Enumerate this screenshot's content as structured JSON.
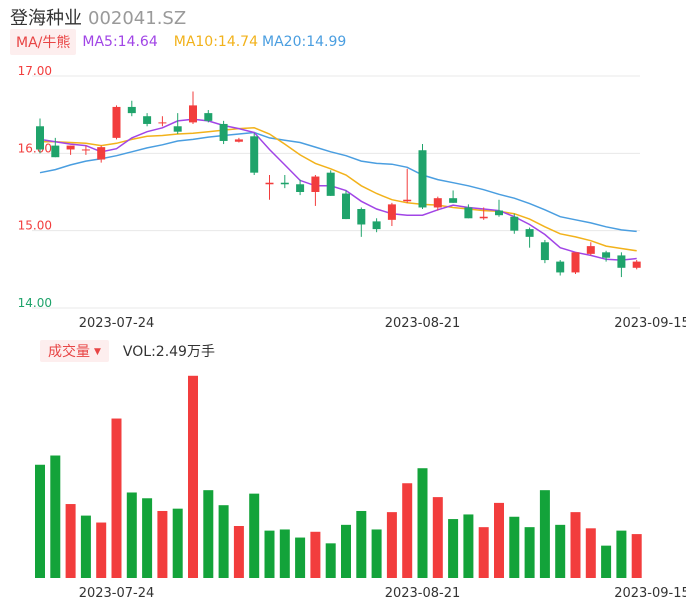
{
  "header": {
    "stock_name": "登海种业",
    "stock_code": "002041.SZ",
    "ma_tag": "MA/牛熊",
    "ma5_label": "MA5:14.64",
    "ma10_label": "MA10:14.74",
    "ma20_label": "MA20:14.99",
    "volume_tag": "成交量",
    "volume_label": "VOL:2.49万手"
  },
  "colors": {
    "up": "#f23d3d",
    "down": "#1fa36b",
    "vol_down": "#13a33a",
    "ma5": "#a145e6",
    "ma10": "#f2b21b",
    "ma20": "#4a9ee0",
    "grid": "#e8e8e8"
  },
  "chart_data": [
    {
      "type": "candlestick",
      "y_ticks": [
        "17.00",
        "16.00",
        "15.00",
        "14.00"
      ],
      "ylim": [
        14.0,
        17.0
      ],
      "x_tick_labels": [
        {
          "index": 5,
          "label": "2023-07-24"
        },
        {
          "index": 25,
          "label": "2023-08-21"
        },
        {
          "index": 40,
          "label": "2023-09-15"
        }
      ],
      "candles": [
        {
          "o": 16.35,
          "h": 16.45,
          "l": 16.0,
          "c": 16.05
        },
        {
          "o": 16.1,
          "h": 16.2,
          "l": 15.95,
          "c": 15.95
        },
        {
          "o": 16.05,
          "h": 16.1,
          "l": 15.98,
          "c": 16.1
        },
        {
          "o": 16.05,
          "h": 16.1,
          "l": 15.98,
          "c": 16.05
        },
        {
          "o": 15.92,
          "h": 16.1,
          "l": 15.88,
          "c": 16.08
        },
        {
          "o": 16.2,
          "h": 16.62,
          "l": 16.18,
          "c": 16.6
        },
        {
          "o": 16.6,
          "h": 16.68,
          "l": 16.48,
          "c": 16.52
        },
        {
          "o": 16.48,
          "h": 16.52,
          "l": 16.35,
          "c": 16.38
        },
        {
          "o": 16.4,
          "h": 16.48,
          "l": 16.35,
          "c": 16.4
        },
        {
          "o": 16.35,
          "h": 16.52,
          "l": 16.25,
          "c": 16.28
        },
        {
          "o": 16.4,
          "h": 16.8,
          "l": 16.38,
          "c": 16.62
        },
        {
          "o": 16.52,
          "h": 16.56,
          "l": 16.4,
          "c": 16.42
        },
        {
          "o": 16.38,
          "h": 16.42,
          "l": 16.12,
          "c": 16.16
        },
        {
          "o": 16.15,
          "h": 16.2,
          "l": 16.14,
          "c": 16.18
        },
        {
          "o": 16.22,
          "h": 16.26,
          "l": 15.72,
          "c": 15.75
        },
        {
          "o": 15.6,
          "h": 15.72,
          "l": 15.4,
          "c": 15.62
        },
        {
          "o": 15.62,
          "h": 15.72,
          "l": 15.55,
          "c": 15.6
        },
        {
          "o": 15.6,
          "h": 15.66,
          "l": 15.46,
          "c": 15.5
        },
        {
          "o": 15.5,
          "h": 15.72,
          "l": 15.32,
          "c": 15.7
        },
        {
          "o": 15.75,
          "h": 15.78,
          "l": 15.45,
          "c": 15.45
        },
        {
          "o": 15.48,
          "h": 15.52,
          "l": 15.15,
          "c": 15.15
        },
        {
          "o": 15.28,
          "h": 15.3,
          "l": 14.92,
          "c": 15.08
        },
        {
          "o": 15.12,
          "h": 15.16,
          "l": 14.98,
          "c": 15.02
        },
        {
          "o": 15.14,
          "h": 15.36,
          "l": 15.06,
          "c": 15.34
        },
        {
          "o": 15.38,
          "h": 15.8,
          "l": 15.36,
          "c": 15.4
        },
        {
          "o": 16.04,
          "h": 16.12,
          "l": 15.28,
          "c": 15.3
        },
        {
          "o": 15.3,
          "h": 15.44,
          "l": 15.26,
          "c": 15.42
        },
        {
          "o": 15.42,
          "h": 15.52,
          "l": 15.36,
          "c": 15.36
        },
        {
          "o": 15.3,
          "h": 15.34,
          "l": 15.16,
          "c": 15.16
        },
        {
          "o": 15.16,
          "h": 15.3,
          "l": 15.14,
          "c": 15.18
        },
        {
          "o": 15.26,
          "h": 15.4,
          "l": 15.18,
          "c": 15.2
        },
        {
          "o": 15.18,
          "h": 15.22,
          "l": 14.96,
          "c": 15.0
        },
        {
          "o": 15.02,
          "h": 15.04,
          "l": 14.78,
          "c": 14.92
        },
        {
          "o": 14.85,
          "h": 14.88,
          "l": 14.58,
          "c": 14.62
        },
        {
          "o": 14.6,
          "h": 14.62,
          "l": 14.42,
          "c": 14.46
        },
        {
          "o": 14.46,
          "h": 14.72,
          "l": 14.44,
          "c": 14.72
        },
        {
          "o": 14.7,
          "h": 14.85,
          "l": 14.68,
          "c": 14.8
        },
        {
          "o": 14.72,
          "h": 14.74,
          "l": 14.6,
          "c": 14.65
        },
        {
          "o": 14.68,
          "h": 14.72,
          "l": 14.4,
          "c": 14.52
        },
        {
          "o": 14.52,
          "h": 14.62,
          "l": 14.5,
          "c": 14.6
        }
      ],
      "ma5": [
        16.18,
        16.15,
        16.12,
        16.1,
        16.02,
        16.06,
        16.2,
        16.28,
        16.33,
        16.42,
        16.44,
        16.42,
        16.36,
        16.32,
        16.27,
        16.05,
        15.85,
        15.65,
        15.58,
        15.58,
        15.52,
        15.38,
        15.28,
        15.22,
        15.2,
        15.2,
        15.27,
        15.33,
        15.3,
        15.28,
        15.26,
        15.18,
        15.08,
        14.95,
        14.78,
        14.72,
        14.68,
        14.63,
        14.62,
        14.64
      ],
      "ma10": [
        16.15,
        16.15,
        16.14,
        16.13,
        16.1,
        16.13,
        16.18,
        16.22,
        16.23,
        16.25,
        16.26,
        16.28,
        16.3,
        16.32,
        16.33,
        16.25,
        16.12,
        15.98,
        15.87,
        15.8,
        15.72,
        15.58,
        15.48,
        15.4,
        15.36,
        15.34,
        15.33,
        15.3,
        15.28,
        15.26,
        15.25,
        15.22,
        15.15,
        15.05,
        14.96,
        14.92,
        14.87,
        14.8,
        14.77,
        14.74
      ],
      "ma20": [
        15.75,
        15.79,
        15.85,
        15.9,
        15.93,
        15.97,
        16.02,
        16.07,
        16.11,
        16.16,
        16.18,
        16.21,
        16.23,
        16.25,
        16.27,
        16.2,
        16.17,
        16.14,
        16.08,
        16.02,
        15.97,
        15.9,
        15.87,
        15.86,
        15.82,
        15.72,
        15.66,
        15.62,
        15.58,
        15.53,
        15.47,
        15.42,
        15.35,
        15.27,
        15.18,
        15.14,
        15.1,
        15.05,
        15.01,
        14.99
      ]
    },
    {
      "type": "bar",
      "title": "成交量",
      "values": [
        4.9,
        5.3,
        3.2,
        2.7,
        2.4,
        6.9,
        3.7,
        3.45,
        2.9,
        3.0,
        8.75,
        3.8,
        3.15,
        2.25,
        3.65,
        2.05,
        2.1,
        1.75,
        2.0,
        1.5,
        2.3,
        2.9,
        2.1,
        2.85,
        4.1,
        4.75,
        3.5,
        2.55,
        2.75,
        2.2,
        3.25,
        2.65,
        2.2,
        3.8,
        2.3,
        2.85,
        2.15,
        1.4,
        2.05,
        1.9
      ],
      "directions": [
        "down",
        "down",
        "up",
        "down",
        "up",
        "up",
        "down",
        "down",
        "up",
        "down",
        "up",
        "down",
        "down",
        "up",
        "down",
        "down",
        "down",
        "down",
        "up",
        "down",
        "down",
        "down",
        "down",
        "up",
        "up",
        "down",
        "up",
        "down",
        "down",
        "up",
        "up",
        "down",
        "down",
        "down",
        "down",
        "up",
        "up",
        "down",
        "down",
        "up"
      ]
    }
  ]
}
